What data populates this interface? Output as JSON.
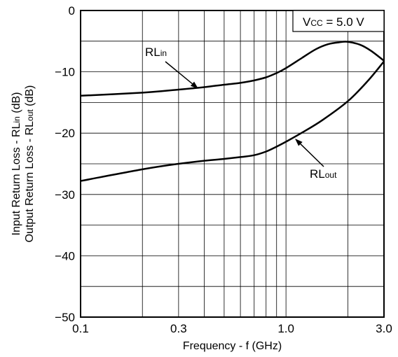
{
  "chart_data": {
    "type": "line",
    "xlabel": "Frequency - f (GHz)",
    "ylabel_lines": [
      [
        "Input Return Loss - RL",
        "in",
        " (dB)"
      ],
      [
        "Output Return Loss - RL",
        "out",
        " (dB)"
      ]
    ],
    "x_scale": "log",
    "xlim": [
      0.1,
      3.0
    ],
    "ylim": [
      -50,
      0
    ],
    "grid": true,
    "x_ticks": [
      {
        "value": 0.1,
        "label": "0.1"
      },
      {
        "value": 0.3,
        "label": "0.3"
      },
      {
        "value": 1.0,
        "label": "1.0"
      },
      {
        "value": 3.0,
        "label": "3.0"
      }
    ],
    "x_minor_grid": [
      0.2,
      0.4,
      0.5,
      0.6,
      0.7,
      0.8,
      0.9,
      2.0
    ],
    "y_ticks": [
      {
        "value": 0,
        "label": "0"
      },
      {
        "value": -10,
        "label": "−10"
      },
      {
        "value": -20,
        "label": "−20"
      },
      {
        "value": -30,
        "label": "−30"
      },
      {
        "value": -40,
        "label": "−40"
      },
      {
        "value": -50,
        "label": "−50"
      }
    ],
    "y_minor_grid": [
      -5,
      -15,
      -25,
      -35,
      -45
    ],
    "condition": {
      "main": "V",
      "sub": "CC",
      "rest": " = 5.0 V"
    },
    "series": [
      {
        "name": "RL_in",
        "label_main": "RL",
        "label_sub": "in",
        "x": [
          0.1,
          0.2,
          0.3,
          0.4,
          0.5,
          0.6,
          0.7,
          0.8,
          0.9,
          1.0,
          1.2,
          1.4,
          1.6,
          1.8,
          2.0,
          2.3,
          2.6,
          3.0
        ],
        "y": [
          -13.9,
          -13.4,
          -12.9,
          -12.5,
          -12.1,
          -11.8,
          -11.4,
          -10.9,
          -10.2,
          -9.4,
          -7.7,
          -6.3,
          -5.5,
          -5.2,
          -5.1,
          -5.6,
          -6.6,
          -8.2
        ]
      },
      {
        "name": "RL_out",
        "label_main": "RL",
        "label_sub": "out",
        "x": [
          0.1,
          0.2,
          0.3,
          0.4,
          0.5,
          0.6,
          0.7,
          0.8,
          0.9,
          1.0,
          1.2,
          1.5,
          2.0,
          2.5,
          3.0
        ],
        "y": [
          -27.8,
          -25.9,
          -25.0,
          -24.5,
          -24.2,
          -23.9,
          -23.6,
          -23.0,
          -22.2,
          -21.4,
          -19.9,
          -17.9,
          -14.8,
          -11.5,
          -8.3
        ]
      }
    ]
  }
}
